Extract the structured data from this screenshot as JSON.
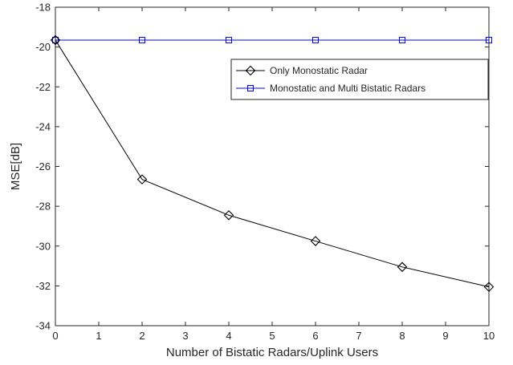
{
  "chart_data": {
    "type": "line",
    "title": "",
    "xlabel": "Number of Bistatic Radars/Uplink Users",
    "ylabel": "MSE[dB]",
    "xlim": [
      0,
      10
    ],
    "ylim": [
      -34,
      -18
    ],
    "xticks": [
      0,
      1,
      2,
      3,
      4,
      5,
      6,
      7,
      8,
      9,
      10
    ],
    "yticks": [
      -34,
      -32,
      -30,
      -28,
      -26,
      -24,
      -22,
      -20,
      -18
    ],
    "grid": false,
    "legend_position": "top-right",
    "series": [
      {
        "name": "Only Monostatic Radar",
        "marker": "diamond",
        "color": "#000000",
        "x": [
          0,
          2,
          4,
          6,
          8,
          10
        ],
        "y": [
          -19.65,
          -26.65,
          -28.45,
          -29.75,
          -31.05,
          -32.05
        ]
      },
      {
        "name": "Monostatic and Multi Bistatic Radars",
        "marker": "square",
        "color": "#0000ff",
        "x": [
          0,
          2,
          4,
          6,
          8,
          10
        ],
        "y": [
          -19.65,
          -19.65,
          -19.65,
          -19.65,
          -19.65,
          -19.65
        ]
      }
    ]
  }
}
